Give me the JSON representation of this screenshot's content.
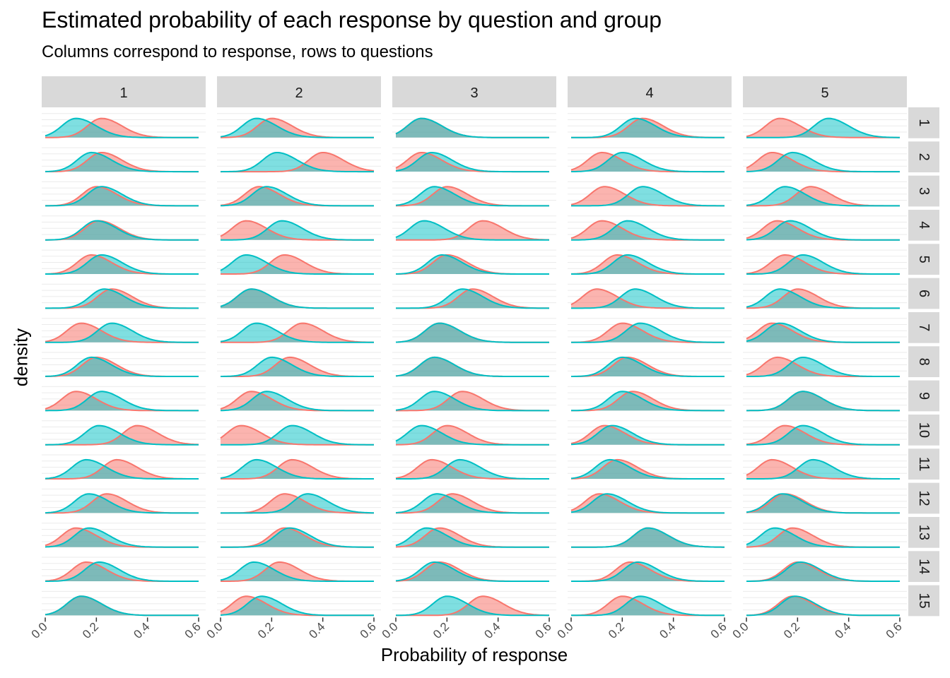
{
  "chart_data": {
    "type": "area",
    "title": "Estimated probability of each response by question and group",
    "subtitle": "Columns correspond to response, rows to questions",
    "xlabel": "Probability of response",
    "ylabel": "density",
    "xlim": [
      0,
      0.6
    ],
    "x_ticks": [
      "0.0",
      "0.2",
      "0.4",
      "0.6"
    ],
    "columns": [
      "1",
      "2",
      "3",
      "4",
      "5"
    ],
    "rows": [
      "1",
      "2",
      "3",
      "4",
      "5",
      "6",
      "7",
      "8",
      "9",
      "10",
      "11",
      "12",
      "13",
      "14",
      "15"
    ],
    "colors": {
      "group_a": "#F8766D",
      "group_b": "#00BFC4",
      "overlap": "#7CA6A3"
    },
    "grid": true,
    "legend": "none",
    "peaks": {
      "group_a": [
        [
          0.22,
          0.2,
          0.1,
          0.28,
          0.13
        ],
        [
          0.22,
          0.4,
          0.1,
          0.12,
          0.1
        ],
        [
          0.2,
          0.15,
          0.2,
          0.13,
          0.25
        ],
        [
          0.21,
          0.1,
          0.34,
          0.12,
          0.12
        ],
        [
          0.18,
          0.25,
          0.2,
          0.18,
          0.15
        ],
        [
          0.26,
          0.12,
          0.3,
          0.1,
          0.2
        ],
        [
          0.14,
          0.32,
          0.17,
          0.2,
          0.1
        ],
        [
          0.2,
          0.27,
          0.15,
          0.22,
          0.12
        ],
        [
          0.12,
          0.12,
          0.26,
          0.24,
          0.22
        ],
        [
          0.36,
          0.08,
          0.2,
          0.13,
          0.15
        ],
        [
          0.28,
          0.28,
          0.14,
          0.18,
          0.1
        ],
        [
          0.24,
          0.25,
          0.22,
          0.11,
          0.15
        ],
        [
          0.12,
          0.25,
          0.17,
          0.3,
          0.18
        ],
        [
          0.16,
          0.23,
          0.17,
          0.23,
          0.2
        ],
        [
          0.14,
          0.1,
          0.34,
          0.2,
          0.18
        ]
      ],
      "group_b": [
        [
          0.12,
          0.14,
          0.1,
          0.25,
          0.32
        ],
        [
          0.18,
          0.22,
          0.14,
          0.2,
          0.18
        ],
        [
          0.22,
          0.18,
          0.15,
          0.28,
          0.15
        ],
        [
          0.2,
          0.24,
          0.11,
          0.22,
          0.17
        ],
        [
          0.22,
          0.1,
          0.18,
          0.22,
          0.22
        ],
        [
          0.23,
          0.12,
          0.26,
          0.25,
          0.13
        ],
        [
          0.26,
          0.14,
          0.17,
          0.27,
          0.13
        ],
        [
          0.18,
          0.2,
          0.15,
          0.2,
          0.22
        ],
        [
          0.22,
          0.18,
          0.15,
          0.2,
          0.22
        ],
        [
          0.21,
          0.28,
          0.1,
          0.16,
          0.22
        ],
        [
          0.16,
          0.14,
          0.25,
          0.15,
          0.26
        ],
        [
          0.17,
          0.34,
          0.16,
          0.14,
          0.14
        ],
        [
          0.17,
          0.27,
          0.12,
          0.3,
          0.11
        ],
        [
          0.21,
          0.13,
          0.15,
          0.26,
          0.21
        ],
        [
          0.14,
          0.16,
          0.2,
          0.27,
          0.19
        ]
      ],
      "spread": 0.055
    }
  }
}
